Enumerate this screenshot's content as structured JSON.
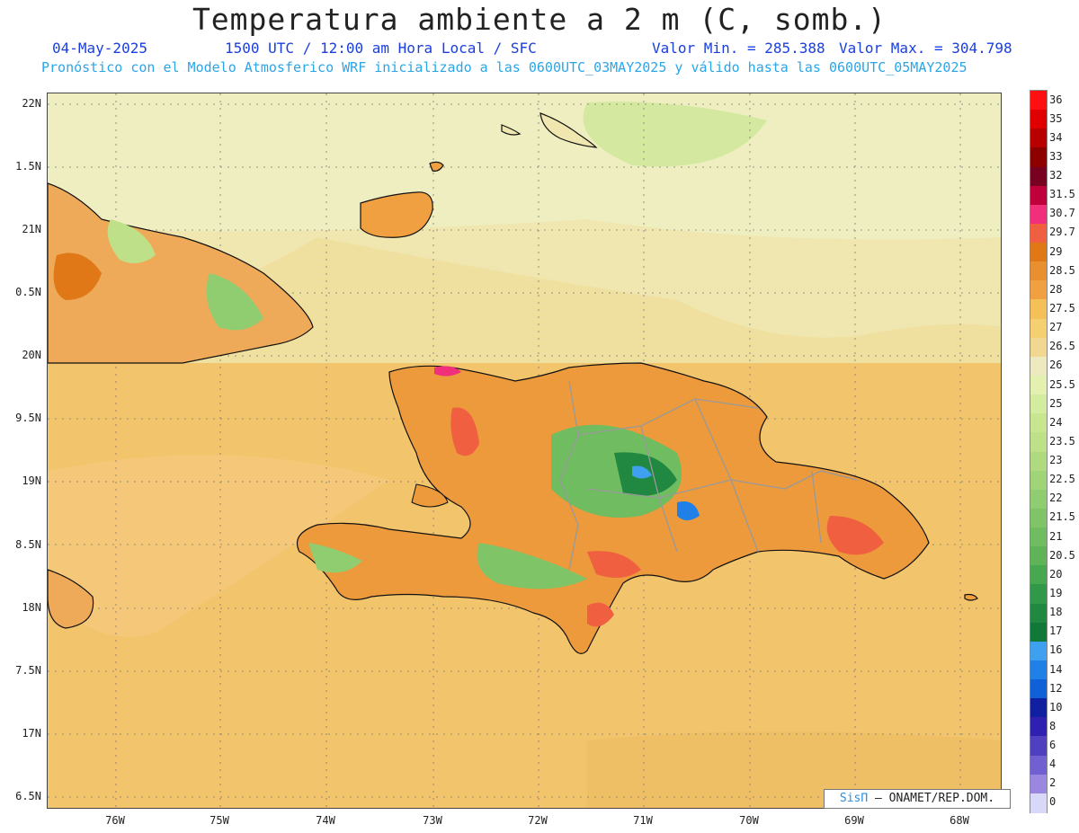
{
  "header": {
    "title": "Temperatura ambiente a 2 m (C, somb.)",
    "date": "04-May-2025",
    "time": "1500 UTC / 12:00 am Hora Local / SFC",
    "min_label": "Valor Min. = 285.388",
    "max_label": "Valor Max. = 304.798",
    "model_line": "Pronóstico con el Modelo Atmosferico WRF inicializado a las 0600UTC_03MAY2025 y válido hasta las  0600UTC_05MAY2025"
  },
  "axes": {
    "lat_labels": [
      "22N",
      "1.5N",
      "21N",
      "0.5N",
      "20N",
      "9.5N",
      "19N",
      "8.5N",
      "18N",
      "7.5N",
      "17N",
      "6.5N"
    ],
    "lon_labels": [
      "76W",
      "75W",
      "74W",
      "73W",
      "72W",
      "71W",
      "70W",
      "69W",
      "68W"
    ]
  },
  "colorbar": {
    "labels": [
      "36",
      "35",
      "34",
      "33",
      "32",
      "31.5",
      "30.7",
      "29.7",
      "29",
      "28.5",
      "28",
      "27.5",
      "27",
      "26.5",
      "26",
      "25.5",
      "25",
      "24",
      "23.5",
      "23",
      "22.5",
      "22",
      "21.5",
      "21",
      "20.5",
      "20",
      "19",
      "18",
      "17",
      "16",
      "14",
      "12",
      "10",
      "8",
      "6",
      "4",
      "2",
      "0"
    ],
    "colors": [
      "#ff1010",
      "#e00000",
      "#b80000",
      "#8c0000",
      "#780020",
      "#c0003a",
      "#f0307a",
      "#f06040",
      "#e07818",
      "#e89030",
      "#f0a040",
      "#f4c058",
      "#f4d070",
      "#f0d890",
      "#eeeac0",
      "#e4f0b0",
      "#d4eca0",
      "#c8e690",
      "#bee088",
      "#b0da80",
      "#a0d478",
      "#90cc70",
      "#80c468",
      "#70bc60",
      "#60b458",
      "#48a850",
      "#309848",
      "#208840",
      "#107838",
      "#40a0f0",
      "#2080e8",
      "#1060d8",
      "#1020a0",
      "#3020b0",
      "#5040c0",
      "#7060d0",
      "#9a88e0",
      "#d8d8f8"
    ]
  },
  "credit": {
    "sis": "SisΠ",
    "rest": " – ONAMET/REP.DOM."
  }
}
